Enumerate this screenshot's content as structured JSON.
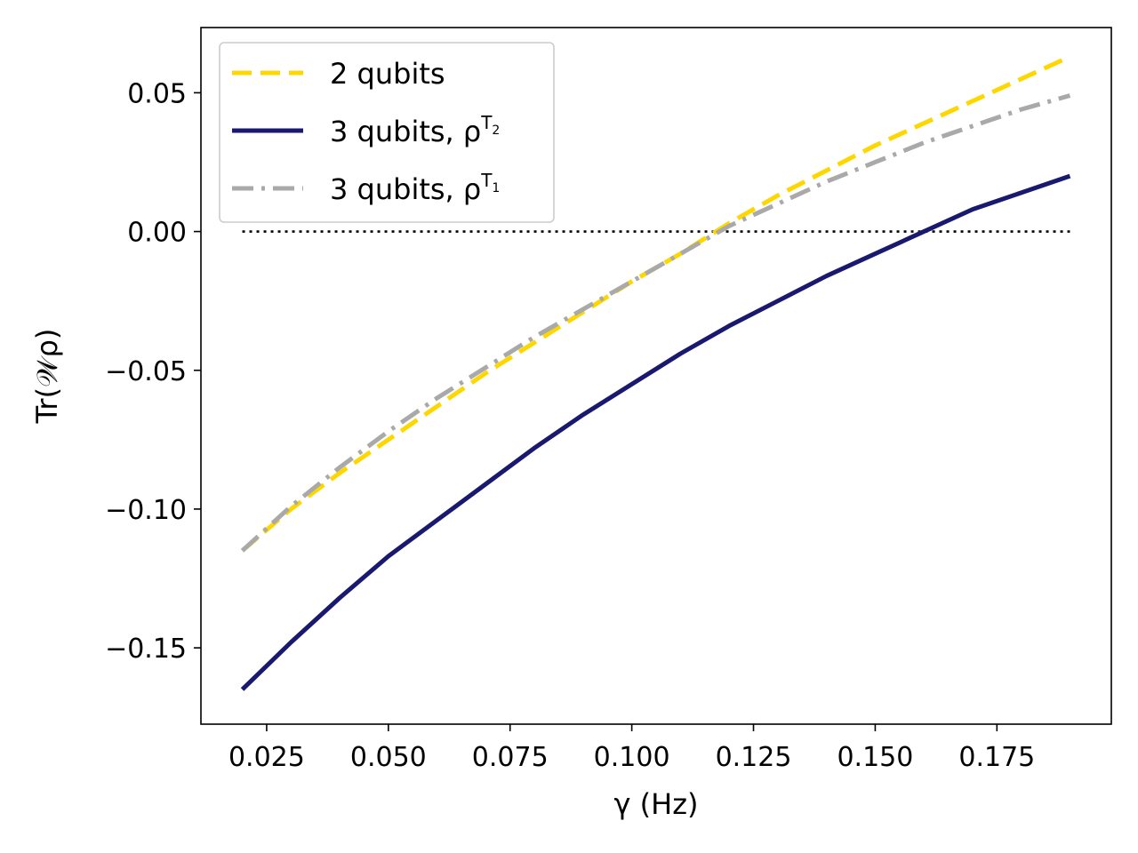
{
  "chart_data": {
    "type": "line",
    "xlabel": "γ (Hz)",
    "ylabel": "Tr(𝒲ρ)",
    "xlim": [
      0.0115,
      0.1985
    ],
    "ylim": [
      -0.1775,
      0.0735
    ],
    "xticks": [
      0.025,
      0.05,
      0.075,
      0.1,
      0.125,
      0.15,
      0.175
    ],
    "xtick_labels": [
      "0.025",
      "0.050",
      "0.075",
      "0.100",
      "0.125",
      "0.150",
      "0.175"
    ],
    "yticks": [
      -0.15,
      -0.1,
      -0.05,
      0.0,
      0.05
    ],
    "ytick_labels": [
      "−0.15",
      "−0.10",
      "−0.05",
      "0.00",
      "0.05"
    ],
    "grid": false,
    "legend_position": "top-left",
    "series": [
      {
        "name": "2 qubits",
        "color": "#ffd700",
        "style": "dashed",
        "x": [
          0.02,
          0.03,
          0.04,
          0.05,
          0.06,
          0.07,
          0.08,
          0.09,
          0.1,
          0.11,
          0.12,
          0.13,
          0.14,
          0.15,
          0.16,
          0.17,
          0.18,
          0.19
        ],
        "y": [
          -0.115,
          -0.1,
          -0.087,
          -0.075,
          -0.063,
          -0.051,
          -0.04,
          -0.029,
          -0.018,
          -0.008,
          0.003,
          0.013,
          0.022,
          0.031,
          0.039,
          0.047,
          0.055,
          0.063
        ]
      },
      {
        "name": "3 qubits, ρ",
        "superscript": "T",
        "subscript": "2",
        "color": "#191970",
        "style": "solid",
        "x": [
          0.02,
          0.03,
          0.04,
          0.05,
          0.06,
          0.07,
          0.08,
          0.09,
          0.1,
          0.11,
          0.12,
          0.13,
          0.14,
          0.15,
          0.16,
          0.17,
          0.18,
          0.19
        ],
        "y": [
          -0.165,
          -0.148,
          -0.132,
          -0.117,
          -0.104,
          -0.091,
          -0.078,
          -0.066,
          -0.055,
          -0.044,
          -0.034,
          -0.025,
          -0.016,
          -0.008,
          0.0,
          0.008,
          0.014,
          0.02
        ]
      },
      {
        "name": "3 qubits, ρ",
        "superscript": "T",
        "subscript": "1",
        "color": "#a9a9a9",
        "style": "dashdot",
        "x": [
          0.02,
          0.03,
          0.04,
          0.05,
          0.06,
          0.07,
          0.08,
          0.09,
          0.1,
          0.11,
          0.12,
          0.13,
          0.14,
          0.15,
          0.16,
          0.17,
          0.18,
          0.19
        ],
        "y": [
          -0.115,
          -0.099,
          -0.085,
          -0.072,
          -0.06,
          -0.049,
          -0.038,
          -0.028,
          -0.018,
          -0.008,
          0.002,
          0.01,
          0.018,
          0.025,
          0.032,
          0.038,
          0.044,
          0.049
        ]
      }
    ],
    "reference_line": {
      "y": 0.0,
      "x": [
        0.02,
        0.19
      ],
      "color": "#000000",
      "style": "dotted"
    }
  }
}
